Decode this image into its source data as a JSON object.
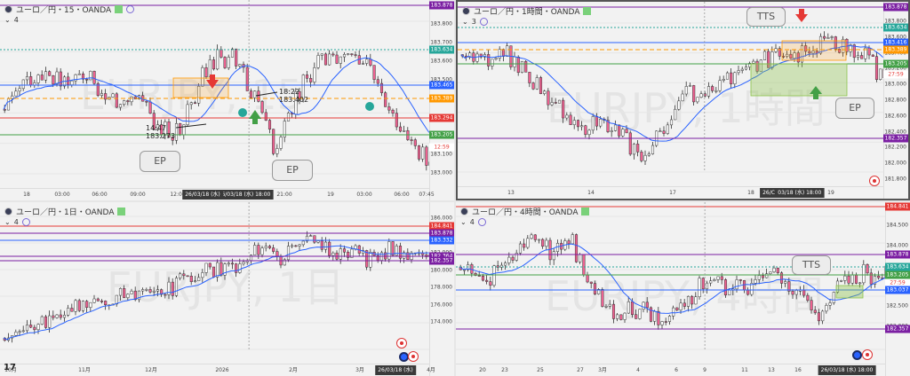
{
  "panels": [
    {
      "title": "ユーロ／円・15・OANDA",
      "interval_num": "4",
      "price_ticks": [
        "183.878",
        "183.800",
        "183.700",
        "183.600",
        "183.500",
        "183.400",
        "183.300",
        "183.200",
        "183.100",
        "183.000"
      ],
      "price_tags": [
        {
          "text": "183.878",
          "color": "#7b1fa2"
        },
        {
          "text": "183.634",
          "color": "#26a69a"
        },
        {
          "text": "183.465",
          "color": "#2962ff"
        },
        {
          "text": "183.389",
          "color": "#ff9800"
        },
        {
          "text": "183.294",
          "color": "#e53935"
        },
        {
          "text": "183.205",
          "color": "#43a047"
        },
        {
          "text": "12:59",
          "color": "#ffffff"
        }
      ],
      "time_ticks": [
        "18",
        "03:00",
        "06:00",
        "09:00",
        "12:00",
        "15:00",
        "21:00",
        "19",
        "03:00",
        "06:00",
        "07:45"
      ],
      "time_box": "26/03/18 (水)  18:00",
      "time_box2": "26/03/18 (水)",
      "notes": [
        {
          "time": "18:22",
          "price": "183.402"
        },
        {
          "time": "14:47",
          "price": "183.273"
        }
      ],
      "callouts": [
        "EP",
        "EP"
      ],
      "watermark": "EURJPY, 15"
    },
    {
      "title": "ユーロ／円・1時間・OANDA",
      "interval_num": "3",
      "price_ticks": [
        "183.800",
        "183.600",
        "183.400",
        "183.200",
        "183.000",
        "182.800",
        "182.600",
        "182.400",
        "182.200",
        "182.000",
        "181.800"
      ],
      "price_tags": [
        {
          "text": "183.878",
          "color": "#7b1fa2"
        },
        {
          "text": "183.634",
          "color": "#26a69a"
        },
        {
          "text": "183.416",
          "color": "#2962ff"
        },
        {
          "text": "183.389",
          "color": "#ff9800"
        },
        {
          "text": "183.205",
          "color": "#43a047"
        },
        {
          "text": "27:59",
          "color": "#ffffff"
        },
        {
          "text": "182.357",
          "color": "#7b1fa2"
        }
      ],
      "time_ticks": [
        "13",
        "14",
        "17",
        "18",
        "19"
      ],
      "time_box": "26/03/18 (水)  18:00",
      "time_box2": "26/C",
      "callouts": [
        "TTS",
        "EP"
      ],
      "watermark": "EURJPY, 1時間"
    },
    {
      "title": "ユーロ／円・1日・OANDA",
      "interval_num": "4",
      "price_ticks": [
        "186.000",
        "184.000",
        "182.000",
        "180.000",
        "178.000",
        "176.000",
        "174.000"
      ],
      "price_tags": [
        {
          "text": "184.841",
          "color": "#e53935"
        },
        {
          "text": "183.878",
          "color": "#7b1fa2"
        },
        {
          "text": "27:59",
          "color": "#ffffff"
        },
        {
          "text": "183.332",
          "color": "#2962ff"
        },
        {
          "text": "182.364",
          "color": "#7b1fa2"
        },
        {
          "text": "182.357",
          "color": "#7b1fa2"
        }
      ],
      "time_ticks": [
        "10月",
        "11月",
        "12月",
        "2026",
        "2月",
        "3月",
        "4月"
      ],
      "time_box": "26/03/18 (水)",
      "watermark": "EURJPY, 1日",
      "logo": "17"
    },
    {
      "title": "ユーロ／円・4時間・OANDA",
      "interval_num": "4",
      "price_ticks": [
        "184.500",
        "184.000",
        "183.500",
        "183.000",
        "182.500",
        "182.000"
      ],
      "price_tags": [
        {
          "text": "184.841",
          "color": "#e53935"
        },
        {
          "text": "183.878",
          "color": "#7b1fa2"
        },
        {
          "text": "183.634",
          "color": "#26a69a"
        },
        {
          "text": "183.205",
          "color": "#43a047"
        },
        {
          "text": "27:59",
          "color": "#ffffff"
        },
        {
          "text": "183.037",
          "color": "#2962ff"
        },
        {
          "text": "182.357",
          "color": "#7b1fa2"
        }
      ],
      "time_ticks": [
        "20",
        "23",
        "25",
        "27",
        "3月",
        "4",
        "6",
        "9",
        "11",
        "13",
        "16",
        "20"
      ],
      "time_box": "26/03/18 (水)  18:00",
      "callouts": [
        "TTS"
      ],
      "watermark": "EURJPY, 4時間"
    }
  ],
  "chart_data": [
    {
      "type": "candlestick",
      "title": "ユーロ／円・15・OANDA",
      "y_range": [
        183.0,
        183.9
      ],
      "levels": [
        {
          "name": "resistance",
          "value": 183.634,
          "style": "dotted",
          "color": "#26a69a"
        },
        {
          "name": "ma",
          "value": 183.465,
          "color": "#2962ff"
        },
        {
          "name": "entry",
          "value": 183.389,
          "style": "dashed",
          "color": "#ff9800"
        },
        {
          "name": "stop",
          "value": 183.294,
          "color": "#e53935"
        },
        {
          "name": "support",
          "value": 183.205,
          "color": "#43a047"
        }
      ],
      "annotations": [
        {
          "time": "18:22",
          "price": 183.402
        },
        {
          "time": "14:47",
          "price": 183.273
        }
      ],
      "last_price": 183.08
    },
    {
      "type": "candlestick",
      "title": "ユーロ／円・1時間・OANDA",
      "y_range": [
        181.8,
        183.9
      ],
      "levels": [
        {
          "value": 183.878
        },
        {
          "value": 183.634
        },
        {
          "value": 183.389
        },
        {
          "value": 183.205
        },
        {
          "value": 182.357
        }
      ],
      "last_price": 183.3
    },
    {
      "type": "candlestick",
      "title": "ユーロ／円・1日・OANDA",
      "y_range": [
        173.0,
        187.0
      ],
      "levels": [
        {
          "value": 184.841
        },
        {
          "value": 182.357
        }
      ],
      "last_price": 183.3
    },
    {
      "type": "candlestick",
      "title": "ユーロ／円・4時間・OANDA",
      "y_range": [
        181.6,
        185.0
      ],
      "levels": [
        {
          "value": 184.841
        },
        {
          "value": 183.634
        },
        {
          "value": 183.205
        },
        {
          "value": 182.357
        }
      ],
      "last_price": 183.3
    }
  ],
  "colors": {
    "up": "#ffffff",
    "down": "#f06292",
    "border": "#333333",
    "ma": "#2962ff"
  }
}
